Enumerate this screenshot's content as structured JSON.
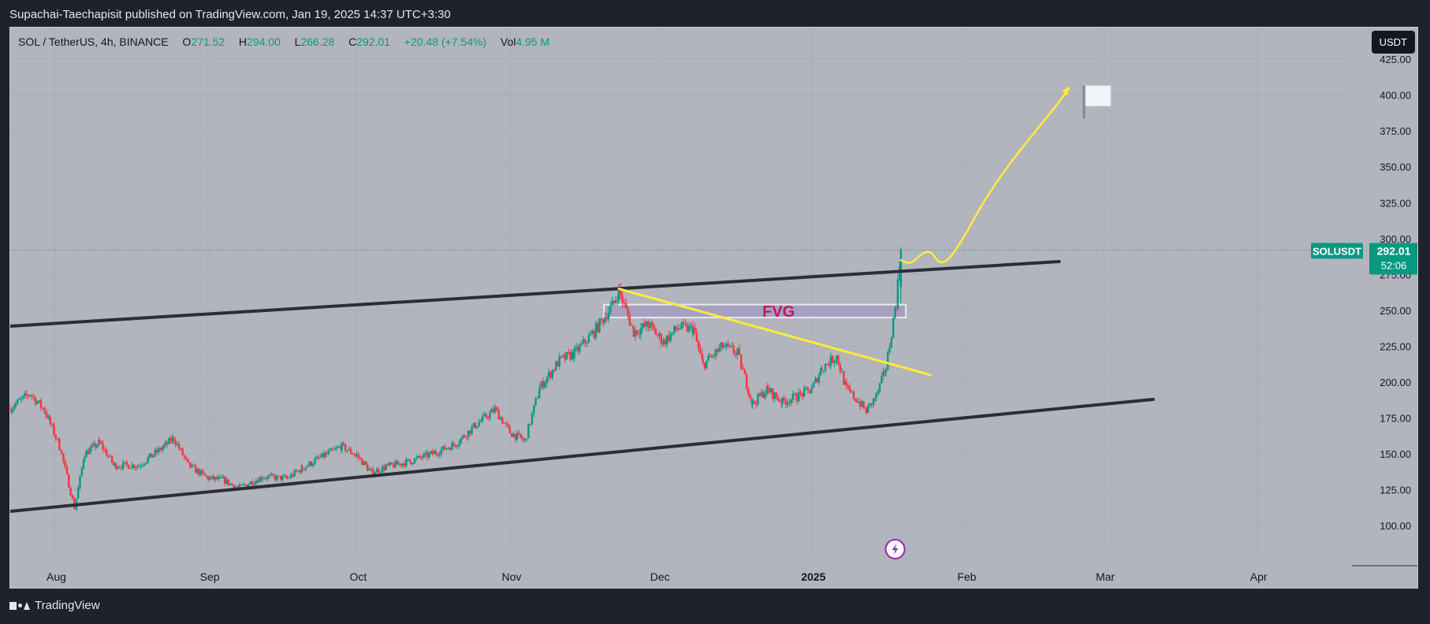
{
  "header": {
    "publisher_text": "Supachai-Taechapisit published on TradingView.com, Jan 19, 2025 14:37 UTC+3:30"
  },
  "legend": {
    "symbol": "SOL / TetherUS, 4h, BINANCE",
    "open_label": "O",
    "open": "271.52",
    "high_label": "H",
    "high": "294.00",
    "low_label": "L",
    "low": "266.28",
    "close_label": "C",
    "close": "292.01",
    "change": "+20.48 (+7.54%)",
    "volume_label": "Vol",
    "volume": "4.95 M"
  },
  "currency_button": {
    "label": "USDT"
  },
  "price_badge": {
    "symbol": "SOLUSDT",
    "price": "292.01",
    "countdown": "52:06"
  },
  "annotations": {
    "fvg_label": "FVG",
    "flag_icon": "white-flag-icon",
    "bolt_icon": "lightning-icon"
  },
  "footer": {
    "brand": "TradingView",
    "logo_icon": "tradingview-logo-icon"
  },
  "colors": {
    "chart_bg": "#b2b5be",
    "page_bg": "#1e222d",
    "candle_up": "#089981",
    "candle_down": "#f23645",
    "trendline": "#2a2e39",
    "projection": "#ffeb3b",
    "fvg_fill": "#9c8fc7",
    "badge": "#089981"
  },
  "chart_data": {
    "type": "candlestick",
    "timeframe": "4h",
    "y_ticks": [
      100,
      125,
      150,
      175,
      200,
      225,
      250,
      275,
      300,
      325,
      350,
      375,
      400,
      425
    ],
    "y_tick_labels": [
      "100.00",
      "125.00",
      "150.00",
      "175.00",
      "200.00",
      "225.00",
      "250.00",
      "275.00",
      "300.00",
      "325.00",
      "350.00",
      "375.00",
      "400.00",
      "425.00"
    ],
    "ylim": [
      82,
      447
    ],
    "x_ticks": [
      {
        "label": "Aug",
        "date": "2024-08-01",
        "bold": false
      },
      {
        "label": "Sep",
        "date": "2024-09-01",
        "bold": false
      },
      {
        "label": "Oct",
        "date": "2024-10-01",
        "bold": false
      },
      {
        "label": "Nov",
        "date": "2024-11-01",
        "bold": false
      },
      {
        "label": "Dec",
        "date": "2024-12-01",
        "bold": false
      },
      {
        "label": "2025",
        "date": "2025-01-01",
        "bold": true
      },
      {
        "label": "Feb",
        "date": "2025-02-01",
        "bold": false
      },
      {
        "label": "Mar",
        "date": "2025-03-01",
        "bold": false
      },
      {
        "label": "Apr",
        "date": "2025-04-01",
        "bold": false
      }
    ],
    "xlim": [
      "2024-07-23",
      "2025-05-01"
    ],
    "price_path": [
      [
        "2024-07-23",
        182
      ],
      [
        "2024-07-27",
        192
      ],
      [
        "2024-07-30",
        180
      ],
      [
        "2024-08-02",
        155
      ],
      [
        "2024-08-05",
        112
      ],
      [
        "2024-08-07",
        150
      ],
      [
        "2024-08-10",
        158
      ],
      [
        "2024-08-13",
        142
      ],
      [
        "2024-08-18",
        142
      ],
      [
        "2024-08-23",
        155
      ],
      [
        "2024-08-25",
        161
      ],
      [
        "2024-08-28",
        142
      ],
      [
        "2024-09-01",
        133
      ],
      [
        "2024-09-04",
        132
      ],
      [
        "2024-09-07",
        126
      ],
      [
        "2024-09-12",
        134
      ],
      [
        "2024-09-17",
        133
      ],
      [
        "2024-09-20",
        140
      ],
      [
        "2024-09-25",
        150
      ],
      [
        "2024-09-28",
        155
      ],
      [
        "2024-10-01",
        149
      ],
      [
        "2024-10-04",
        137
      ],
      [
        "2024-10-07",
        141
      ],
      [
        "2024-10-12",
        145
      ],
      [
        "2024-10-17",
        151
      ],
      [
        "2024-10-21",
        157
      ],
      [
        "2024-10-25",
        170
      ],
      [
        "2024-10-29",
        181
      ],
      [
        "2024-11-01",
        165
      ],
      [
        "2024-11-04",
        159
      ],
      [
        "2024-11-07",
        196
      ],
      [
        "2024-11-11",
        215
      ],
      [
        "2024-11-14",
        220
      ],
      [
        "2024-11-18",
        235
      ],
      [
        "2024-11-22",
        255
      ],
      [
        "2024-11-23",
        264
      ],
      [
        "2024-11-26",
        235
      ],
      [
        "2024-11-29",
        240
      ],
      [
        "2024-12-02",
        228
      ],
      [
        "2024-12-05",
        238
      ],
      [
        "2024-12-08",
        237
      ],
      [
        "2024-12-10",
        212
      ],
      [
        "2024-12-14",
        225
      ],
      [
        "2024-12-17",
        220
      ],
      [
        "2024-12-20",
        185
      ],
      [
        "2024-12-23",
        195
      ],
      [
        "2024-12-26",
        186
      ],
      [
        "2024-12-29",
        190
      ],
      [
        "2025-01-01",
        195
      ],
      [
        "2025-01-03",
        210
      ],
      [
        "2025-01-06",
        218
      ],
      [
        "2025-01-08",
        195
      ],
      [
        "2025-01-10",
        188
      ],
      [
        "2025-01-12",
        180
      ],
      [
        "2025-01-14",
        190
      ],
      [
        "2025-01-16",
        210
      ],
      [
        "2025-01-18",
        255
      ],
      [
        "2025-01-19",
        292
      ]
    ],
    "last_price": 292.01,
    "trendlines": [
      {
        "name": "channel-top",
        "points": [
          [
            "2024-07-23",
            239
          ],
          [
            "2025-02-20",
            284
          ]
        ],
        "color": "#2a2e39"
      },
      {
        "name": "channel-bottom",
        "points": [
          [
            "2024-07-23",
            110
          ],
          [
            "2025-03-11",
            188
          ]
        ],
        "color": "#2a2e39"
      },
      {
        "name": "downtrend",
        "points": [
          [
            "2024-11-23",
            265
          ],
          [
            "2025-01-25",
            205
          ]
        ],
        "color": "#ffeb3b"
      }
    ],
    "fvg_zone": {
      "label": "FVG",
      "x": [
        "2024-11-20",
        "2025-01-20"
      ],
      "y": [
        245,
        254
      ]
    },
    "projection": {
      "points": [
        [
          "2025-01-19",
          285
        ],
        [
          "2025-01-21",
          282
        ],
        [
          "2025-01-23",
          289
        ],
        [
          "2025-01-25",
          292
        ],
        [
          "2025-01-27",
          281
        ],
        [
          "2025-01-30",
          290
        ],
        [
          "2025-02-07",
          340
        ],
        [
          "2025-02-20",
          395
        ],
        [
          "2025-02-22",
          405
        ]
      ],
      "color": "#ffeb3b"
    },
    "target_flag": {
      "date": "2025-02-25",
      "price": 400
    }
  }
}
